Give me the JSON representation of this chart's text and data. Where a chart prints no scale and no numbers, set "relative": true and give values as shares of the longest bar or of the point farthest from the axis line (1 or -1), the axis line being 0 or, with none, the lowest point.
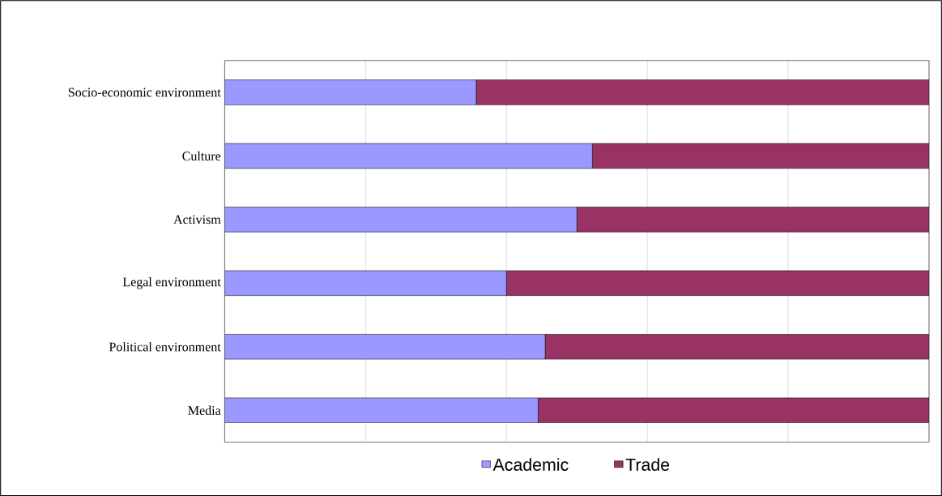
{
  "chart_data": {
    "type": "bar",
    "orientation": "horizontal",
    "stacked": true,
    "relative": true,
    "grid": "x",
    "legend": "bottom",
    "categories": [
      "Socio-economic environment",
      "Culture",
      "Activism",
      "Legal environment",
      "Political environment",
      "Media"
    ],
    "series": [
      {
        "name": "Academic",
        "color": "#9999ff",
        "values": [
          0.357,
          0.522,
          0.5,
          0.4,
          0.455,
          0.445
        ]
      },
      {
        "name": "Trade",
        "color": "#993366",
        "values": [
          0.643,
          0.478,
          0.5,
          0.6,
          0.545,
          0.555
        ]
      }
    ]
  }
}
